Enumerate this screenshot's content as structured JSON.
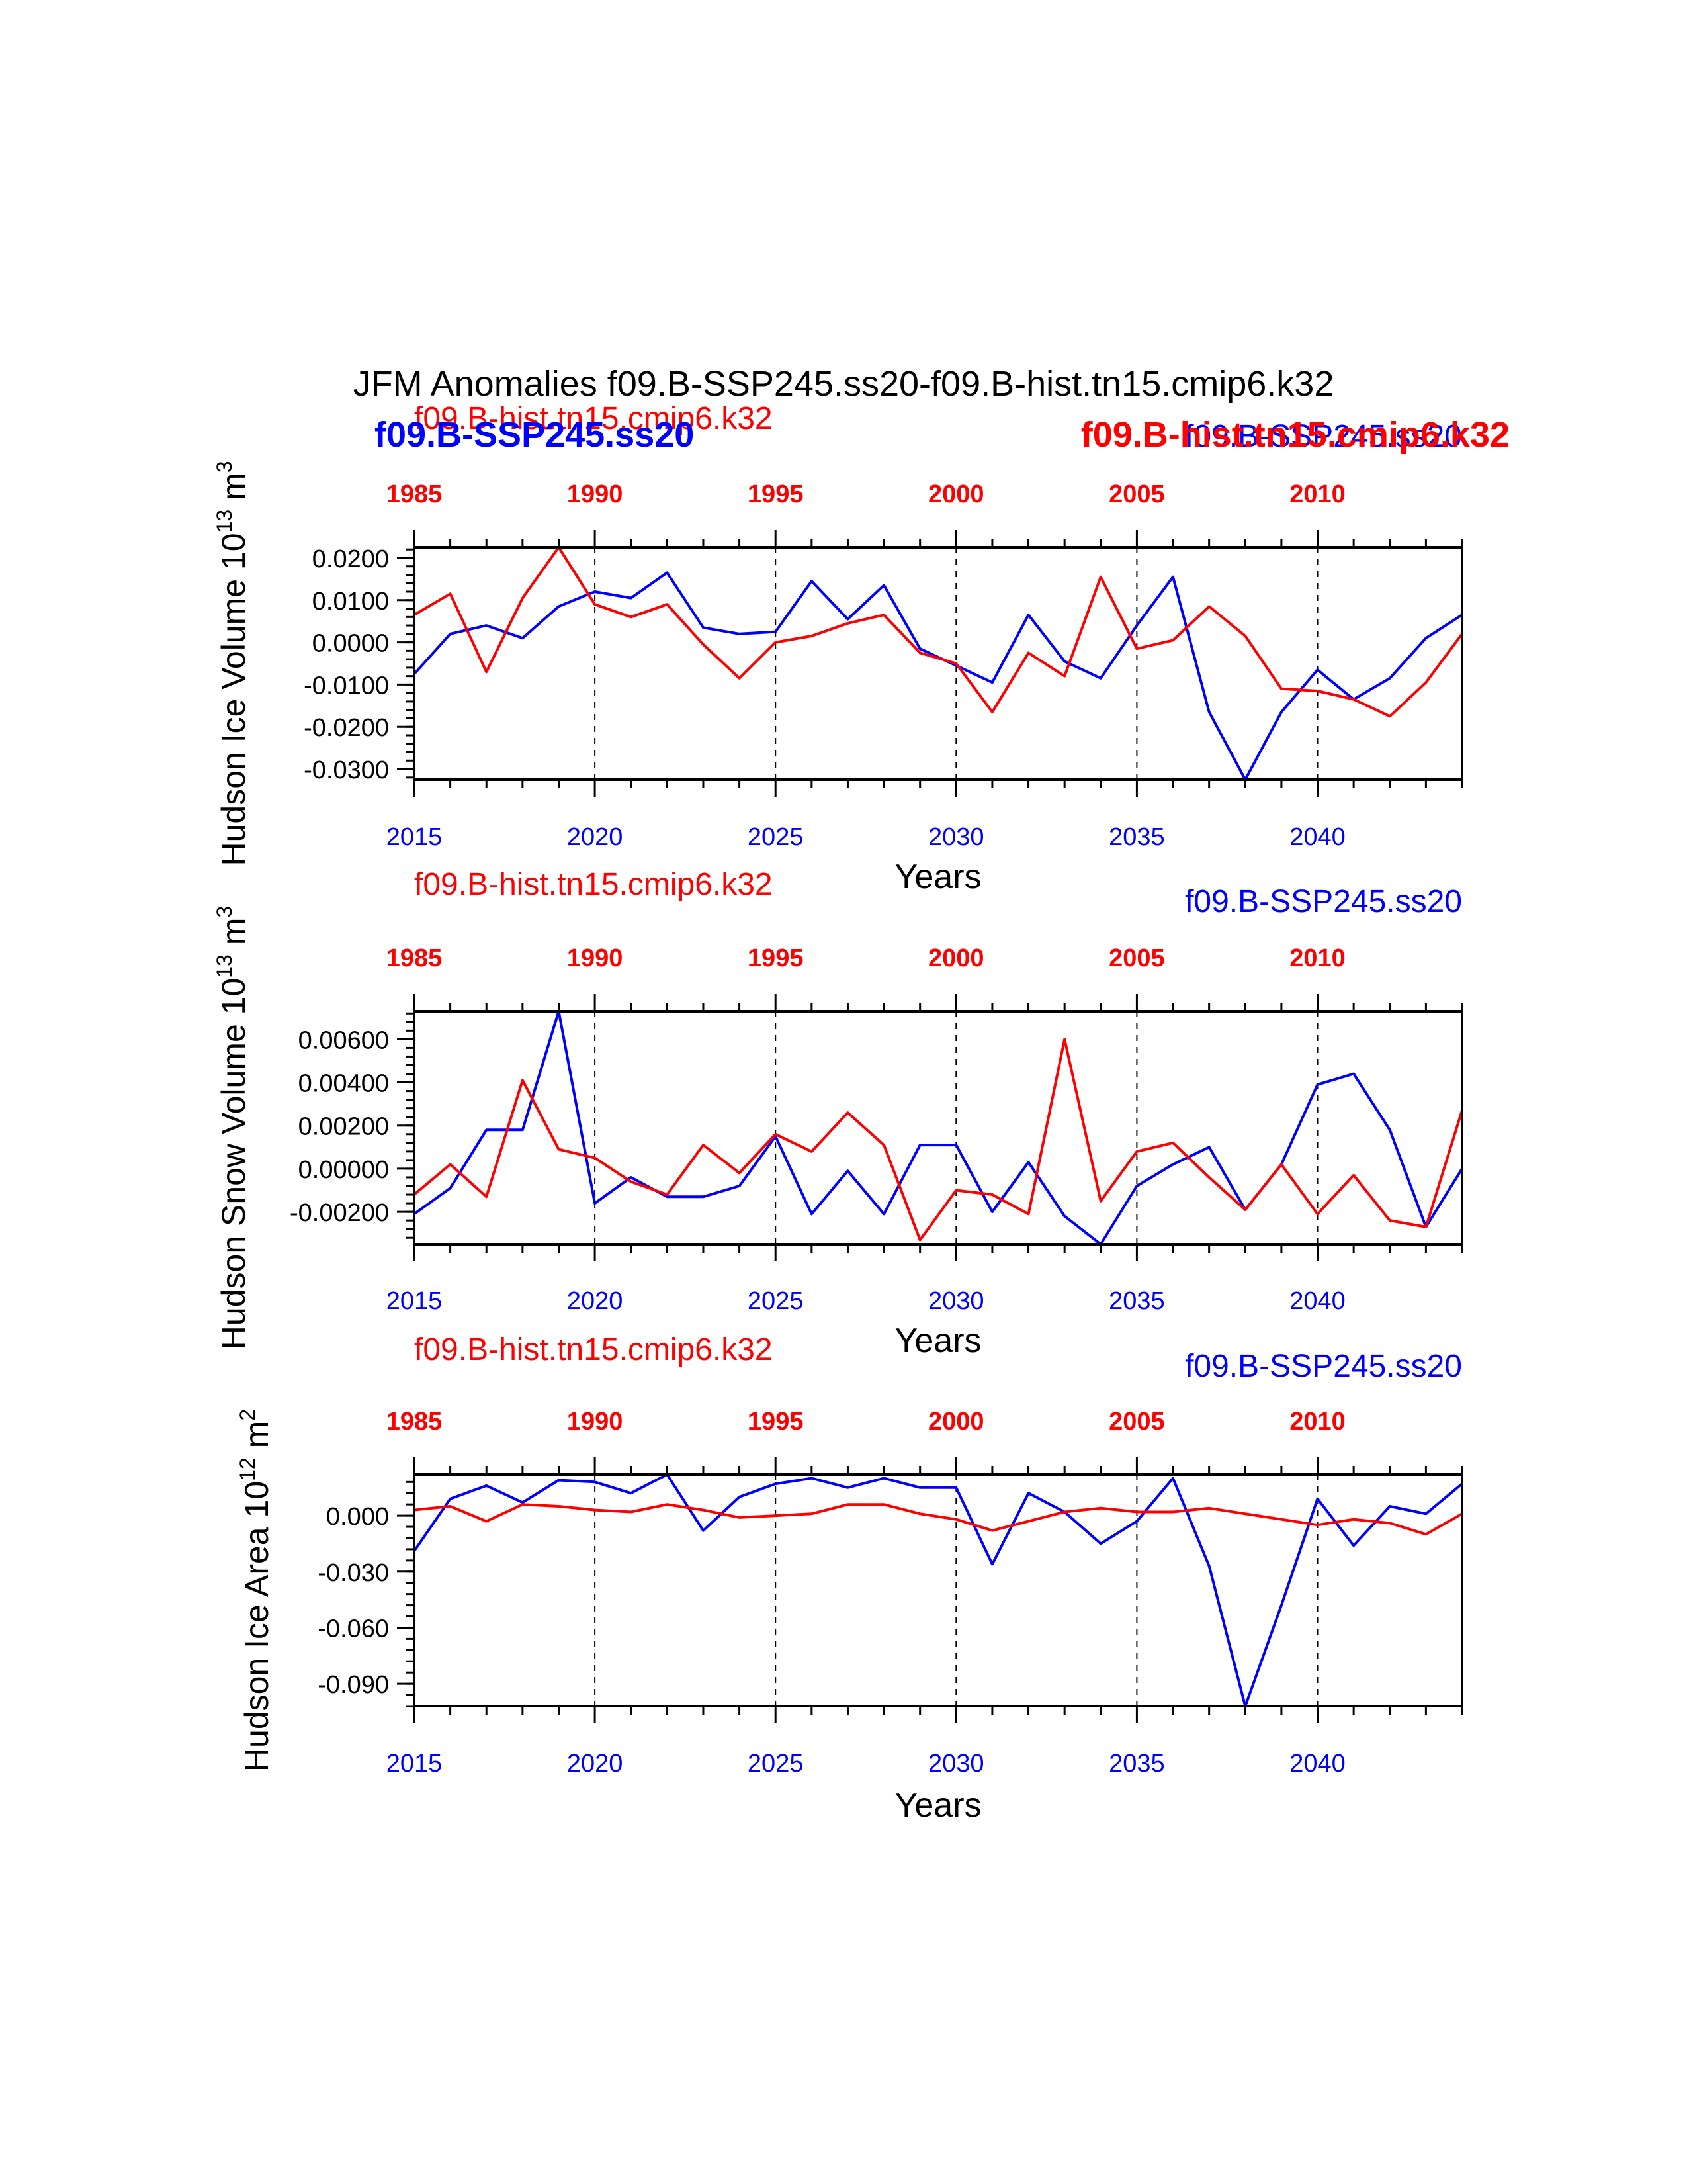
{
  "title": "JFM Anomalies f09.B-SSP245.ss20-f09.B-hist.tn15.cmip6.k32",
  "colors": {
    "ssp": "#0000ff",
    "hist": "#ff0000",
    "axis": "#000000"
  },
  "xlabel": "Years",
  "bottom_ticks": [
    "2015",
    "2020",
    "2025",
    "2030",
    "2035",
    "2040"
  ],
  "top_ticks": [
    "1985",
    "1990",
    "1995",
    "2000",
    "2005",
    "2010"
  ],
  "chart_data": [
    {
      "type": "line",
      "ylabel": {
        "text": "Hudson Ice Volume 10",
        "exp": "13",
        "unit": " m",
        "unit_exp": "3"
      },
      "legend_hist": "f09.B-hist.tn15.cmip6.k32",
      "legend_ssp": "f09.B-SSP245.ss20",
      "overlay_labels": [
        {
          "text": "f09.B-SSP245.ss20",
          "color": "ssp",
          "position": "top-left"
        },
        {
          "text": "f09.B-hist.tn15.cmip6.k32",
          "color": "hist",
          "position": "top-right"
        }
      ],
      "ylim": [
        -0.0325,
        0.0225
      ],
      "yticks": [
        0.02,
        0.01,
        0.0,
        -0.01,
        -0.02,
        -0.03
      ],
      "ytick_labels": [
        "0.0200",
        "0.0100",
        "0.0000",
        "-0.0100",
        "-0.0200",
        "-0.0300"
      ],
      "xlim": [
        2015,
        2044
      ],
      "series": [
        {
          "name": "f09.B-SSP245.ss20",
          "color": "ssp",
          "x": [
            2015,
            2016,
            2017,
            2018,
            2019,
            2020,
            2021,
            2022,
            2023,
            2024,
            2025,
            2026,
            2027,
            2028,
            2029,
            2030,
            2031,
            2032,
            2033,
            2034,
            2035,
            2036,
            2037,
            2038,
            2039,
            2040,
            2041,
            2042,
            2043,
            2044
          ],
          "values": [
            -0.0075,
            0.002,
            0.004,
            0.001,
            0.0085,
            0.012,
            0.0105,
            0.0165,
            0.0035,
            0.002,
            0.0025,
            0.0145,
            0.0055,
            0.0135,
            -0.0015,
            -0.0055,
            -0.0095,
            0.0065,
            -0.0045,
            -0.0085,
            0.004,
            0.0155,
            -0.0165,
            -0.0325,
            -0.0165,
            -0.0065,
            -0.0135,
            -0.0085,
            0.001,
            0.0065
          ]
        },
        {
          "name": "f09.B-hist.tn15.cmip6.k32",
          "color": "hist",
          "x": [
            2015,
            2016,
            2017,
            2018,
            2019,
            2020,
            2021,
            2022,
            2023,
            2024,
            2025,
            2026,
            2027,
            2028,
            2029,
            2030,
            2031,
            2032,
            2033,
            2034,
            2035,
            2036,
            2037,
            2038,
            2039,
            2040,
            2041,
            2042,
            2043,
            2044
          ],
          "values": [
            0.0065,
            0.0115,
            -0.007,
            0.0105,
            0.0225,
            0.009,
            0.006,
            0.009,
            -0.0005,
            -0.0085,
            0.0,
            0.0015,
            0.0045,
            0.0065,
            -0.0025,
            -0.005,
            -0.0165,
            -0.0025,
            -0.008,
            0.0155,
            -0.0015,
            0.0005,
            0.0085,
            0.0015,
            -0.011,
            -0.0115,
            -0.0135,
            -0.0175,
            -0.0095,
            0.002
          ]
        }
      ]
    },
    {
      "type": "line",
      "ylabel": {
        "text": "Hudson Snow Volume 10",
        "exp": "13",
        "unit": " m",
        "unit_exp": "3"
      },
      "legend_hist": "f09.B-hist.tn15.cmip6.k32",
      "legend_ssp": "f09.B-SSP245.ss20",
      "overlay_labels": [],
      "ylim": [
        -0.0035,
        0.0073
      ],
      "yticks": [
        0.006,
        0.004,
        0.002,
        0.0,
        -0.002
      ],
      "ytick_labels": [
        "0.00600",
        "0.00400",
        "0.00200",
        "0.00000",
        "-0.00200"
      ],
      "xlim": [
        2015,
        2044
      ],
      "series": [
        {
          "name": "f09.B-SSP245.ss20",
          "color": "ssp",
          "x": [
            2015,
            2016,
            2017,
            2018,
            2019,
            2020,
            2021,
            2022,
            2023,
            2024,
            2025,
            2026,
            2027,
            2028,
            2029,
            2030,
            2031,
            2032,
            2033,
            2034,
            2035,
            2036,
            2037,
            2038,
            2039,
            2040,
            2041,
            2042,
            2043,
            2044
          ],
          "values": [
            -0.0021,
            -0.0009,
            0.0018,
            0.0018,
            0.0073,
            -0.0016,
            -0.0004,
            -0.0013,
            -0.0013,
            -0.0008,
            0.0015,
            -0.0021,
            -0.0001,
            -0.0021,
            0.0011,
            0.0011,
            -0.002,
            0.0003,
            -0.0022,
            -0.0035,
            -0.0008,
            0.0002,
            0.001,
            -0.0019,
            0.0002,
            0.0039,
            0.0044,
            0.0018,
            -0.0027,
            0.0
          ]
        },
        {
          "name": "f09.B-hist.tn15.cmip6.k32",
          "color": "hist",
          "x": [
            2015,
            2016,
            2017,
            2018,
            2019,
            2020,
            2021,
            2022,
            2023,
            2024,
            2025,
            2026,
            2027,
            2028,
            2029,
            2030,
            2031,
            2032,
            2033,
            2034,
            2035,
            2036,
            2037,
            2038,
            2039,
            2040,
            2041,
            2042,
            2043,
            2044
          ],
          "values": [
            -0.0012,
            0.0002,
            -0.0013,
            0.0041,
            0.0009,
            0.0005,
            -0.0006,
            -0.0012,
            0.0011,
            -0.0002,
            0.0016,
            0.0008,
            0.0026,
            0.0011,
            -0.0033,
            -0.001,
            -0.0012,
            -0.0021,
            0.006,
            -0.0015,
            0.0008,
            0.0012,
            -0.0004,
            -0.0019,
            0.0002,
            -0.0021,
            -0.0003,
            -0.0024,
            -0.0027,
            0.0027
          ]
        }
      ]
    },
    {
      "type": "line",
      "ylabel": {
        "text": "Hudson Ice Area 10",
        "exp": "12",
        "unit": " m",
        "unit_exp": "2"
      },
      "legend_hist": "f09.B-hist.tn15.cmip6.k32",
      "legend_ssp": "f09.B-SSP245.ss20",
      "overlay_labels": [],
      "ylim": [
        -0.102,
        0.022
      ],
      "yticks": [
        0.0,
        -0.03,
        -0.06,
        -0.09
      ],
      "ytick_labels": [
        "0.000",
        "-0.030",
        "-0.060",
        "-0.090"
      ],
      "xlim": [
        2015,
        2044
      ],
      "series": [
        {
          "name": "f09.B-SSP245.ss20",
          "color": "ssp",
          "x": [
            2015,
            2016,
            2017,
            2018,
            2019,
            2020,
            2021,
            2022,
            2023,
            2024,
            2025,
            2026,
            2027,
            2028,
            2029,
            2030,
            2031,
            2032,
            2033,
            2034,
            2035,
            2036,
            2037,
            2038,
            2039,
            2040,
            2041,
            2042,
            2043,
            2044
          ],
          "values": [
            -0.019,
            0.009,
            0.016,
            0.007,
            0.019,
            0.018,
            0.012,
            0.022,
            -0.008,
            0.01,
            0.017,
            0.02,
            0.015,
            0.02,
            0.015,
            0.015,
            -0.026,
            0.012,
            0.002,
            -0.015,
            -0.003,
            0.02,
            -0.027,
            -0.102,
            -0.048,
            0.009,
            -0.016,
            0.005,
            0.001,
            0.017
          ]
        },
        {
          "name": "f09.B-hist.tn15.cmip6.k32",
          "color": "hist",
          "x": [
            2015,
            2016,
            2017,
            2018,
            2019,
            2020,
            2021,
            2022,
            2023,
            2024,
            2025,
            2026,
            2027,
            2028,
            2029,
            2030,
            2031,
            2032,
            2033,
            2034,
            2035,
            2036,
            2037,
            2038,
            2039,
            2040,
            2041,
            2042,
            2043,
            2044
          ],
          "values": [
            0.003,
            0.005,
            -0.003,
            0.006,
            0.005,
            0.003,
            0.002,
            0.006,
            0.003,
            -0.001,
            0.0,
            0.001,
            0.006,
            0.006,
            0.001,
            -0.002,
            -0.008,
            -0.003,
            0.002,
            0.004,
            0.002,
            0.002,
            0.004,
            0.001,
            -0.002,
            -0.005,
            -0.002,
            -0.004,
            -0.01,
            0.001
          ]
        }
      ]
    }
  ]
}
